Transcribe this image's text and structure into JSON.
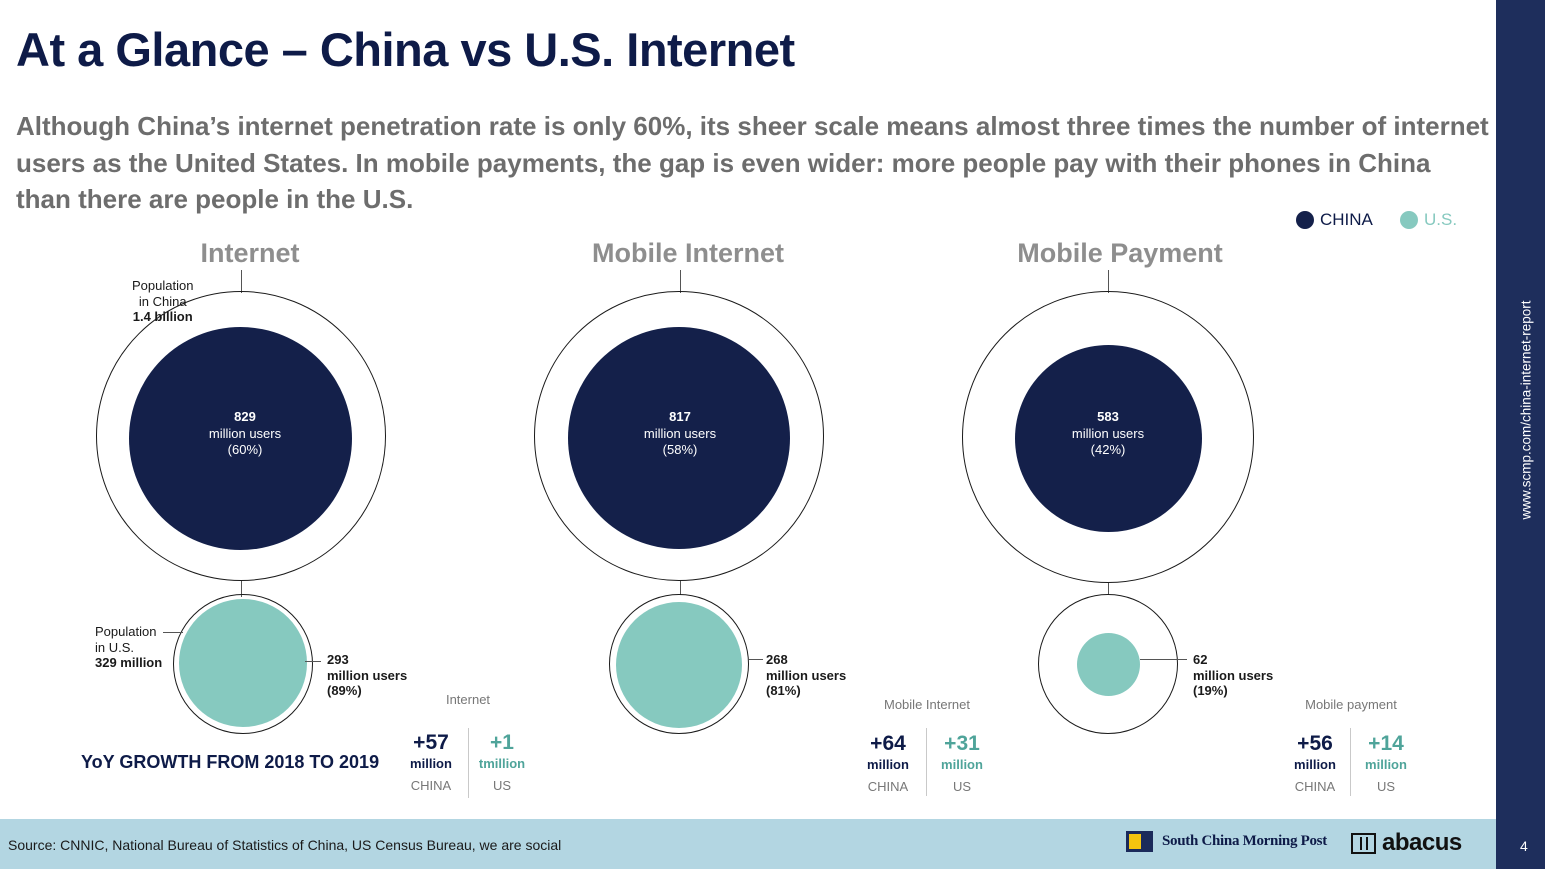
{
  "title": "At a Glance – China vs U.S. Internet",
  "subtitle": "Although China’s internet penetration rate is only 60%, its sheer scale means almost three times the number of internet users as the United States. In mobile payments, the gap is even wider: more people pay with their phones in China than there are people in the U.S.",
  "legend": {
    "china_label": "CHINA",
    "us_label": "U.S.",
    "china_color": "#14204a",
    "us_color": "#86c9bf"
  },
  "population": {
    "china": [
      "Population",
      "in China",
      "1.4 billion"
    ],
    "us": [
      "Population",
      "in U.S.",
      "329 million"
    ]
  },
  "sections": [
    {
      "title": "Internet",
      "china": {
        "value": "829",
        "unit": "million users",
        "pct": "(60%)"
      },
      "us": {
        "value": "293",
        "unit": "million users",
        "pct": "(89%)"
      }
    },
    {
      "title": "Mobile Internet",
      "china": {
        "value": "817",
        "unit": "million users",
        "pct": "(58%)"
      },
      "us": {
        "value": "268",
        "unit": "million users",
        "pct": "(81%)"
      }
    },
    {
      "title": "Mobile Payment",
      "china": {
        "value": "583",
        "unit": "million users",
        "pct": "(42%)"
      },
      "us": {
        "value": "62",
        "unit": "million users",
        "pct": "(19%)"
      }
    }
  ],
  "growth": {
    "heading": "YoY GROWTH FROM 2018 TO 2019",
    "groups": [
      {
        "title": "Internet",
        "china_value": "+57",
        "china_unit": "million",
        "china_label": "CHINA",
        "us_value": "+1",
        "us_unit": "tmillion",
        "us_label": "US"
      },
      {
        "title": "Mobile Internet",
        "china_value": "+64",
        "china_unit": "million",
        "china_label": "CHINA",
        "us_value": "+31",
        "us_unit": "million",
        "us_label": "US"
      },
      {
        "title": "Mobile payment",
        "china_value": "+56",
        "china_unit": "million",
        "china_label": "CHINA",
        "us_value": "+14",
        "us_unit": "million",
        "us_label": "US"
      }
    ]
  },
  "footer": {
    "source": "Source: CNNIC, National Bureau of Statistics of China, US Census Bureau, we are social",
    "scmp": "South China Morning Post",
    "abacus": "abacus"
  },
  "sidebar": {
    "url": "www.scmp.com/china-internet-report",
    "page": "4"
  }
}
